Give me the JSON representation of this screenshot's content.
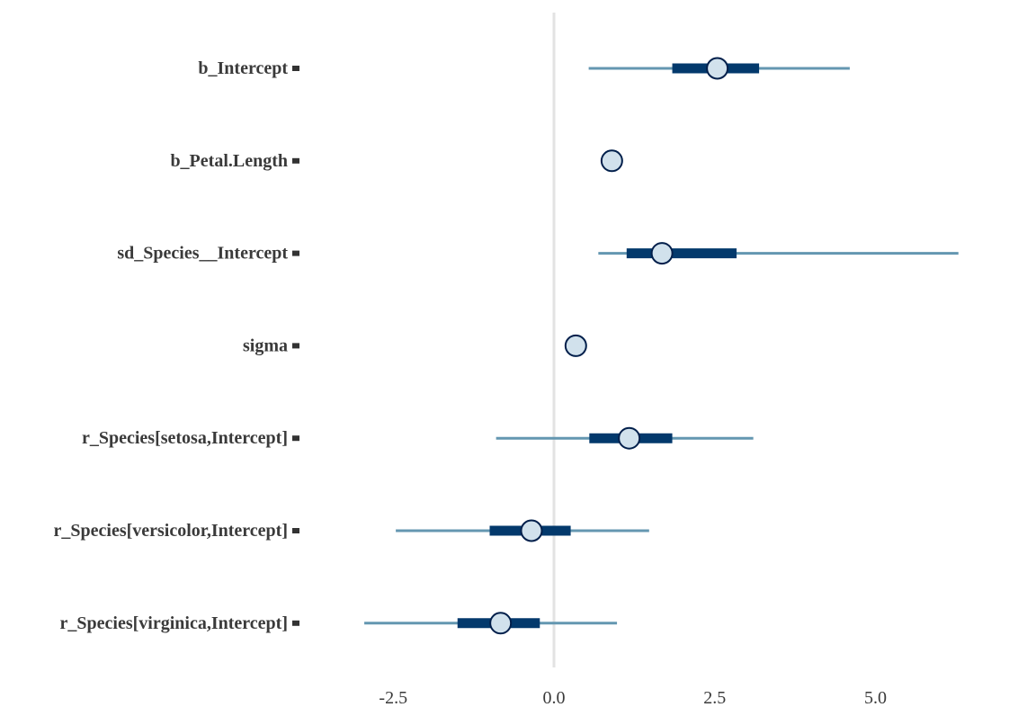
{
  "chart_data": {
    "type": "interval",
    "xticks": [
      -2.5,
      0.0,
      2.5,
      5.0
    ],
    "xtick_labels": [
      "-2.5",
      "0.0",
      "2.5",
      "5.0"
    ],
    "xlim": [
      -3.75,
      7.1
    ],
    "reference_line": 0,
    "colors": {
      "outer_interval": "#6497b1",
      "inner_interval": "#03396c",
      "point_fill": "#d1e1ec",
      "point_stroke": "#011f4b",
      "reference_line": "#e3e3e3",
      "tick_mark": "#333333"
    },
    "parameters": [
      {
        "label": "b_Intercept",
        "point": 2.54,
        "inner": [
          1.84,
          3.19
        ],
        "outer": [
          0.54,
          4.6
        ]
      },
      {
        "label": "b_Petal.Length",
        "point": 0.9,
        "inner": [
          0.87,
          0.93
        ],
        "outer": [
          0.85,
          0.95
        ]
      },
      {
        "label": "sd_Species__Intercept",
        "point": 1.68,
        "inner": [
          1.13,
          2.84
        ],
        "outer": [
          0.69,
          6.29
        ]
      },
      {
        "label": "sigma",
        "point": 0.34,
        "inner": [
          0.33,
          0.35
        ],
        "outer": [
          0.32,
          0.36
        ]
      },
      {
        "label": "r_Species[setosa,Intercept]",
        "point": 1.17,
        "inner": [
          0.55,
          1.84
        ],
        "outer": [
          -0.9,
          3.1
        ]
      },
      {
        "label": "r_Species[versicolor,Intercept]",
        "point": -0.35,
        "inner": [
          -1.0,
          0.26
        ],
        "outer": [
          -2.46,
          1.48
        ]
      },
      {
        "label": "r_Species[virginica,Intercept]",
        "point": -0.83,
        "inner": [
          -1.5,
          -0.22
        ],
        "outer": [
          -2.95,
          0.98
        ]
      }
    ]
  }
}
